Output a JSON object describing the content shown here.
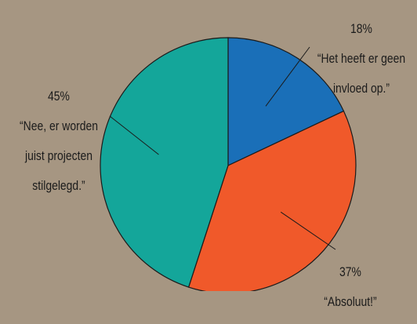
{
  "chart_data": {
    "type": "pie",
    "title": "",
    "slices": [
      {
        "label": "“Het heeft er geen invloed op.”",
        "value": 18,
        "value_label": "18%",
        "color": "#1a6fb8"
      },
      {
        "label": "“Absoluut!”",
        "value": 37,
        "value_label": "37%",
        "color": "#f0592a"
      },
      {
        "label": "“Nee, er worden juist projecten stilgelegd.”",
        "value": 45,
        "value_label": "45%",
        "color": "#14a69a"
      }
    ],
    "start_angle_deg": 0,
    "direction": "clockwise",
    "legend": "none"
  },
  "colors": {
    "background": "#a69682",
    "border": "#1b1b1b",
    "label_text": "#1b1b1b"
  },
  "labels": [
    {
      "pct": "18%",
      "lines": [
        "“Het heeft er geen",
        "invloed op.”"
      ]
    },
    {
      "pct": "37%",
      "lines": [
        "“Absoluut!”"
      ]
    },
    {
      "pct": "45%",
      "lines": [
        "“Nee, er worden",
        "juist projecten",
        "stilgelegd.”"
      ]
    }
  ]
}
